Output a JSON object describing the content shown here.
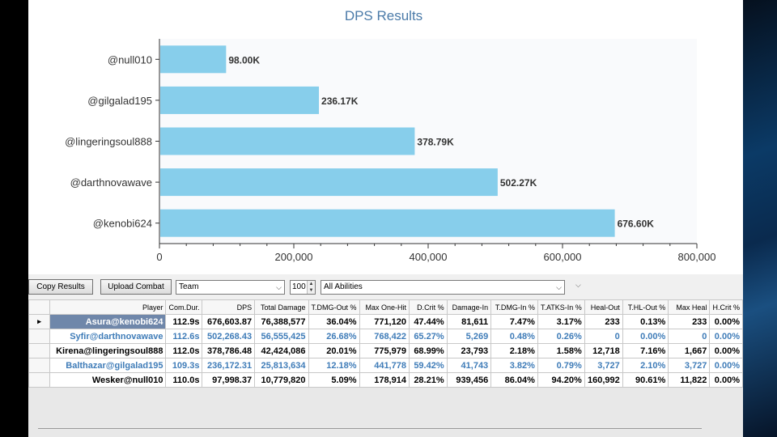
{
  "chart_data": {
    "type": "bar",
    "orientation": "horizontal",
    "title": "DPS Results",
    "categories": [
      "@null010",
      "@gilgalad195",
      "@lingeringsoul888",
      "@darthnovawave",
      "@kenobi624"
    ],
    "values": [
      98000,
      236170,
      378790,
      502270,
      676600
    ],
    "value_labels": [
      "98.00K",
      "236.17K",
      "378.79K",
      "502.27K",
      "676.60K"
    ],
    "xlim": [
      0,
      800000
    ],
    "x_ticks": [
      "0",
      "200,000",
      "400,000",
      "600,000",
      "800,000"
    ],
    "x_tick_values": [
      0,
      200000,
      400000,
      600000,
      800000
    ],
    "bar_color": "#87ceeb",
    "grid": false
  },
  "toolbar": {
    "copy_results": "Copy Results",
    "upload_combat": "Upload Combat",
    "filter_value": "Team",
    "count_value": "100",
    "ability_value": "All Abilities"
  },
  "grid": {
    "columns": [
      "Player",
      "Com.Dur.",
      "DPS",
      "Total Damage",
      "T.DMG-Out %",
      "Max One-Hit",
      "D.Crit %",
      "Damage-In",
      "T.DMG-In %",
      "T.ATKS-In %",
      "Heal-Out",
      "T.HL-Out %",
      "Max Heal",
      "H.Crit %"
    ],
    "rows": [
      [
        "Asura@kenobi624",
        "112.9s",
        "676,603.87",
        "76,388,577",
        "36.04%",
        "771,120",
        "47.44%",
        "81,611",
        "7.47%",
        "3.17%",
        "233",
        "0.13%",
        "233",
        "0.00%"
      ],
      [
        "Syfir@darthnovawave",
        "112.6s",
        "502,268.43",
        "56,555,425",
        "26.68%",
        "768,422",
        "65.27%",
        "5,269",
        "0.48%",
        "0.26%",
        "0",
        "0.00%",
        "0",
        "0.00%"
      ],
      [
        "Kirena@lingeringsoul888",
        "112.0s",
        "378,786.48",
        "42,424,086",
        "20.01%",
        "775,979",
        "68.99%",
        "23,793",
        "2.18%",
        "1.58%",
        "12,718",
        "7.16%",
        "1,667",
        "0.00%"
      ],
      [
        "Balthazar@gilgalad195",
        "109.3s",
        "236,172.31",
        "25,813,634",
        "12.18%",
        "441,778",
        "59.42%",
        "41,743",
        "3.82%",
        "0.79%",
        "3,727",
        "2.10%",
        "3,727",
        "0.00%"
      ],
      [
        "Wesker@null010",
        "110.0s",
        "97,998.37",
        "10,779,820",
        "5.09%",
        "178,914",
        "28.21%",
        "939,456",
        "86.04%",
        "94.20%",
        "160,992",
        "90.61%",
        "11,822",
        "0.00%"
      ]
    ],
    "row_styles": [
      "selected",
      "blue",
      "black",
      "blue",
      "black"
    ],
    "current_row_marker": "▸"
  }
}
